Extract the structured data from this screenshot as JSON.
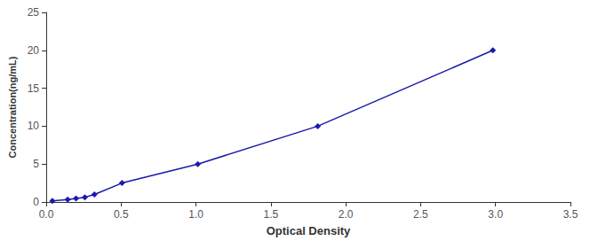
{
  "chart_data": {
    "type": "line",
    "x": [
      0.041,
      0.143,
      0.199,
      0.258,
      0.322,
      0.506,
      1.012,
      1.813,
      2.982
    ],
    "values": [
      0.156,
      0.312,
      0.469,
      0.625,
      1.0,
      2.5,
      5.0,
      10.0,
      20.0
    ],
    "color": "#1a1aaa",
    "marker": "diamond",
    "line_style": "solid",
    "xlabel": "Optical Density",
    "ylabel": "Concentration(ng/mL)",
    "xlim": [
      0,
      3.5
    ],
    "ylim": [
      0,
      25
    ],
    "xticks": [
      {
        "value": 0,
        "label": "0.0"
      },
      0.5,
      {
        "value": 1,
        "label": "1.0"
      },
      1.5,
      {
        "value": 2,
        "label": "2.0"
      },
      2.5,
      {
        "value": 3,
        "label": "3.0"
      },
      3.5
    ],
    "yticks": [
      0,
      5,
      10,
      15,
      20,
      25
    ],
    "grid": false
  }
}
